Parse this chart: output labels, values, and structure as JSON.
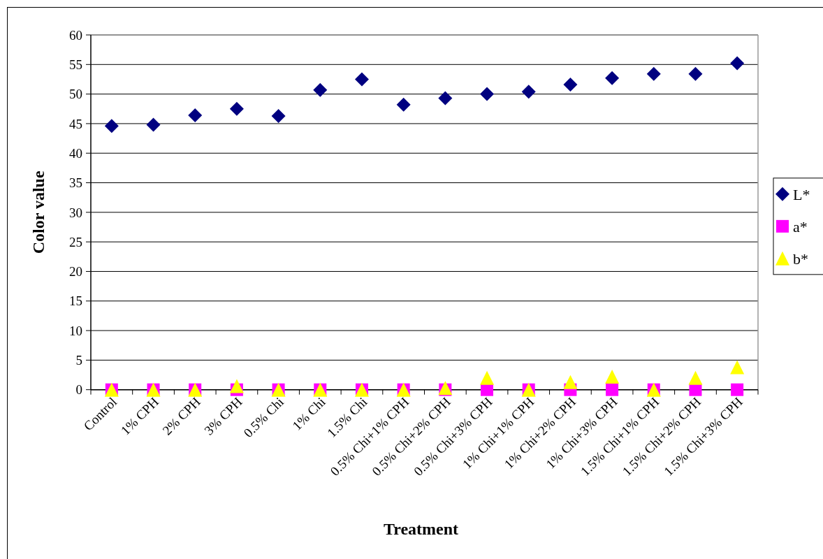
{
  "chart_data": {
    "type": "scatter",
    "xlabel": "Treatment",
    "ylabel": "Color value",
    "categories": [
      "Control",
      "1% CPH",
      "2% CPH",
      "3% CPH",
      "0.5% Chi",
      "1% Chi",
      "1.5% Chi",
      "0.5% Chi+1% CPH",
      "0.5% Chi+2% CPH",
      "0.5% Chi+3% CPH",
      "1% Chi+1% CPH",
      "1% Chi+2% CPH",
      "1% Chi+3% CPH",
      "1.5% Chi+1% CPH",
      "1.5% Chi+2% CPH",
      "1.5% Chi+3% CPH"
    ],
    "series": [
      {
        "name": "L*",
        "color": "#000080",
        "marker": "diamond",
        "values": [
          44.6,
          44.8,
          46.4,
          47.5,
          46.3,
          50.7,
          52.5,
          48.2,
          49.3,
          50.0,
          50.4,
          51.6,
          52.7,
          53.4,
          53.4,
          55.2
        ]
      },
      {
        "name": "a*",
        "color": "#ff00ff",
        "marker": "square",
        "values": [
          0,
          0,
          0,
          0,
          0,
          0,
          0,
          0,
          0,
          0,
          0,
          0,
          0,
          0,
          0,
          0
        ]
      },
      {
        "name": "b*",
        "color": "#ffff00",
        "marker": "triangle",
        "values": [
          0,
          0,
          0,
          0.6,
          0,
          0,
          0,
          0,
          0.3,
          2.0,
          0,
          1.3,
          2.2,
          0,
          2.0,
          3.8
        ]
      }
    ],
    "ylim": [
      0,
      60
    ],
    "yticks": [
      0,
      5,
      10,
      15,
      20,
      25,
      30,
      35,
      40,
      45,
      50,
      55,
      60
    ],
    "grid": "y",
    "legend": "right"
  }
}
